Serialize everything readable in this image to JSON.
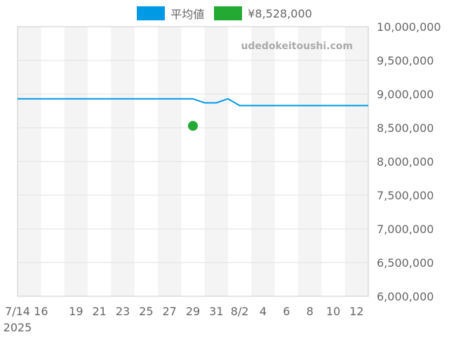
{
  "chart_data": {
    "type": "line",
    "watermark": "udedokeitoushi.com",
    "x_start_label": "7/14",
    "x_start_year": "2025",
    "x_tick_labels": [
      "7/14",
      "16",
      "19",
      "21",
      "23",
      "25",
      "27",
      "29",
      "31",
      "8/2",
      "4",
      "6",
      "8",
      "10",
      "12"
    ],
    "y_tick_labels": [
      "10,000,000",
      "9,500,000",
      "9,000,000",
      "8,500,000",
      "8,000,000",
      "7,500,000",
      "7,000,000",
      "6,500,000",
      "6,000,000"
    ],
    "ylim": [
      6000000,
      10000000
    ],
    "xlim": [
      "2025-07-14",
      "2025-08-13"
    ],
    "grid": true,
    "legend_position": "top-center",
    "series": [
      {
        "name": "平均値",
        "type": "line",
        "color": "#0099e5",
        "points": [
          [
            "2025-07-14",
            8930000
          ],
          [
            "2025-07-29",
            8930000
          ],
          [
            "2025-07-30",
            8870000
          ],
          [
            "2025-07-31",
            8870000
          ],
          [
            "2025-08-01",
            8930000
          ],
          [
            "2025-08-02",
            8830000
          ],
          [
            "2025-08-13",
            8830000
          ]
        ]
      },
      {
        "name": "¥8,528,000",
        "type": "scatter",
        "color": "#22aa33",
        "points": [
          [
            "2025-07-29",
            8528000
          ]
        ]
      }
    ]
  }
}
